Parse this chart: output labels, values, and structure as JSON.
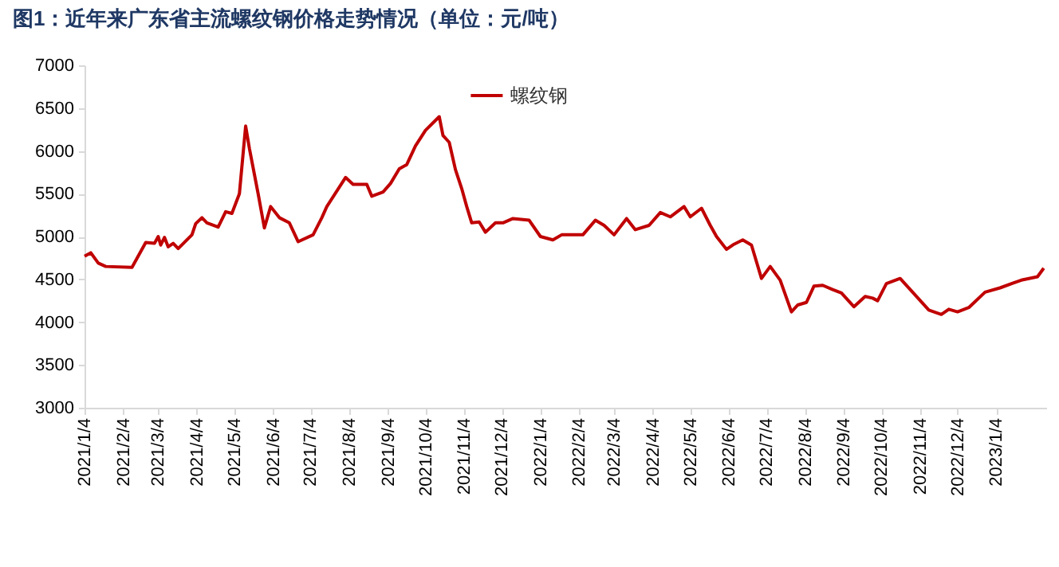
{
  "chart_data": {
    "type": "line",
    "title": "图1：近年来广东省主流螺纹钢价格走势情况（单位：元/吨）",
    "x": [
      "2021-01-04",
      "2021-01-09",
      "2021-01-15",
      "2021-01-21",
      "2021-02-11",
      "2021-02-22",
      "2021-03-01",
      "2021-03-04",
      "2021-03-06",
      "2021-03-09",
      "2021-03-12",
      "2021-03-16",
      "2021-03-20",
      "2021-03-31",
      "2021-04-03",
      "2021-04-08",
      "2021-04-12",
      "2021-04-21",
      "2021-04-27",
      "2021-05-02",
      "2021-05-08",
      "2021-05-13",
      "2021-05-16",
      "2021-05-23",
      "2021-05-28",
      "2021-06-02",
      "2021-06-09",
      "2021-06-17",
      "2021-06-24",
      "2021-07-06",
      "2021-07-13",
      "2021-07-17",
      "2021-08-01",
      "2021-08-07",
      "2021-08-18",
      "2021-08-22",
      "2021-08-31",
      "2021-09-06",
      "2021-09-13",
      "2021-09-19",
      "2021-09-26",
      "2021-10-04",
      "2021-10-15",
      "2021-10-18",
      "2021-10-23",
      "2021-10-28",
      "2021-11-02",
      "2021-11-06",
      "2021-11-10",
      "2021-11-16",
      "2021-11-21",
      "2021-11-29",
      "2021-12-05",
      "2021-12-13",
      "2021-12-26",
      "2022-01-04",
      "2022-01-14",
      "2022-01-21",
      "2022-02-07",
      "2022-02-17",
      "2022-02-24",
      "2022-03-04",
      "2022-03-14",
      "2022-03-21",
      "2022-04-01",
      "2022-04-10",
      "2022-04-18",
      "2022-04-29",
      "2022-05-04",
      "2022-05-13",
      "2022-05-20",
      "2022-05-25",
      "2022-06-02",
      "2022-06-08",
      "2022-06-15",
      "2022-06-22",
      "2022-06-30",
      "2022-07-07",
      "2022-07-15",
      "2022-07-24",
      "2022-07-29",
      "2022-08-05",
      "2022-08-11",
      "2022-08-18",
      "2022-08-26",
      "2022-09-02",
      "2022-09-12",
      "2022-09-21",
      "2022-09-27",
      "2022-10-01",
      "2022-10-08",
      "2022-10-19",
      "2022-10-29",
      "2022-11-11",
      "2022-11-21",
      "2022-11-27",
      "2022-12-04",
      "2022-12-13",
      "2022-12-26",
      "2023-01-07",
      "2023-01-24",
      "2023-02-06",
      "2023-02-11"
    ],
    "series": [
      {
        "name": "螺纹钢",
        "color": "#c00000",
        "values": [
          4770,
          4810,
          4690,
          4650,
          4640,
          4930,
          4920,
          5000,
          4900,
          4990,
          4880,
          4920,
          4860,
          5020,
          5150,
          5220,
          5160,
          5110,
          5290,
          5270,
          5500,
          6290,
          6030,
          5500,
          5100,
          5350,
          5220,
          5160,
          4940,
          5020,
          5220,
          5350,
          5690,
          5610,
          5610,
          5470,
          5520,
          5620,
          5790,
          5840,
          6060,
          6240,
          6400,
          6180,
          6100,
          5780,
          5560,
          5350,
          5160,
          5170,
          5050,
          5160,
          5160,
          5210,
          5190,
          5000,
          4960,
          5020,
          5020,
          5190,
          5130,
          5020,
          5210,
          5080,
          5130,
          5280,
          5230,
          5350,
          5230,
          5330,
          5130,
          5000,
          4850,
          4910,
          4960,
          4900,
          4510,
          4650,
          4490,
          4120,
          4200,
          4230,
          4420,
          4430,
          4380,
          4340,
          4180,
          4300,
          4280,
          4250,
          4450,
          4510,
          4350,
          4140,
          4090,
          4150,
          4120,
          4170,
          4350,
          4400,
          4490,
          4530,
          4630
        ]
      }
    ],
    "xlim": [
      "2021-01-04",
      "2023-02-13"
    ],
    "xticks": [
      {
        "value": "2021-01-04",
        "label": "2021/1/4"
      },
      {
        "value": "2021-02-04",
        "label": "2021/2/4"
      },
      {
        "value": "2021-03-04",
        "label": "2021/3/4"
      },
      {
        "value": "2021-04-04",
        "label": "2021/4/4"
      },
      {
        "value": "2021-05-04",
        "label": "2021/5/4"
      },
      {
        "value": "2021-06-04",
        "label": "2021/6/4"
      },
      {
        "value": "2021-07-04",
        "label": "2021/7/4"
      },
      {
        "value": "2021-08-04",
        "label": "2021/8/4"
      },
      {
        "value": "2021-09-04",
        "label": "2021/9/4"
      },
      {
        "value": "2021-10-04",
        "label": "2021/10/4"
      },
      {
        "value": "2021-11-04",
        "label": "2021/11/4"
      },
      {
        "value": "2021-12-04",
        "label": "2021/12/4"
      },
      {
        "value": "2022-01-04",
        "label": "2022/1/4"
      },
      {
        "value": "2022-02-04",
        "label": "2022/2/4"
      },
      {
        "value": "2022-03-04",
        "label": "2022/3/4"
      },
      {
        "value": "2022-04-04",
        "label": "2022/4/4"
      },
      {
        "value": "2022-05-04",
        "label": "2022/5/4"
      },
      {
        "value": "2022-06-04",
        "label": "2022/6/4"
      },
      {
        "value": "2022-07-04",
        "label": "2022/7/4"
      },
      {
        "value": "2022-08-04",
        "label": "2022/8/4"
      },
      {
        "value": "2022-09-04",
        "label": "2022/9/4"
      },
      {
        "value": "2022-10-04",
        "label": "2022/10/4"
      },
      {
        "value": "2022-11-04",
        "label": "2022/11/4"
      },
      {
        "value": "2022-12-04",
        "label": "2022/12/4"
      },
      {
        "value": "2023-01-04",
        "label": "2023/1/4"
      }
    ],
    "ylim": [
      3000,
      7000
    ],
    "yticks": [
      3000,
      3500,
      4000,
      4500,
      5000,
      5500,
      6000,
      6500,
      7000
    ],
    "grid": false,
    "legend": "top"
  }
}
